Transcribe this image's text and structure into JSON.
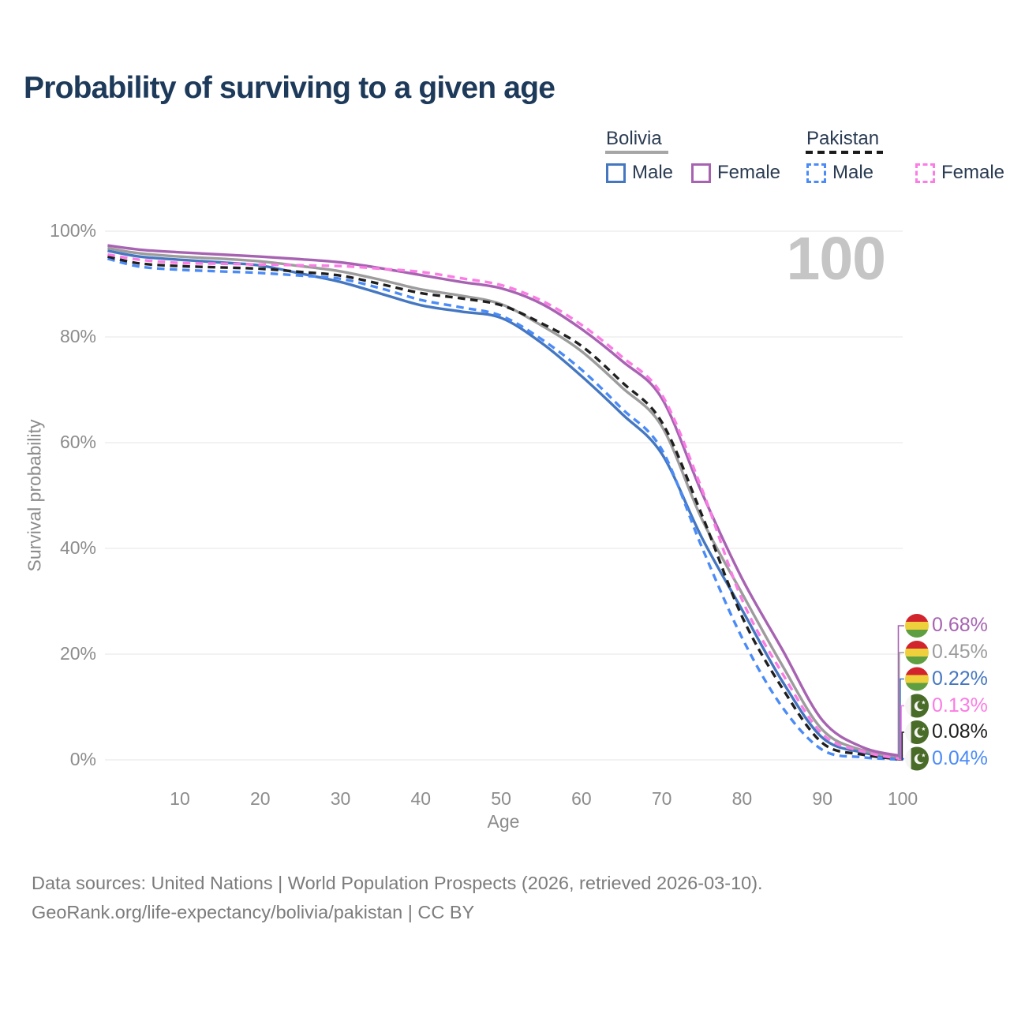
{
  "title": "Probability of surviving to a given age",
  "watermark_label": "100",
  "legend": {
    "groups": [
      {
        "country": "Bolivia",
        "line_style": "solid",
        "line_color": "#9c9c9c",
        "items": [
          {
            "label": "Male",
            "color": "#4577c1",
            "dashed": false
          },
          {
            "label": "Female",
            "color": "#a763b2",
            "dashed": false
          }
        ]
      },
      {
        "country": "Pakistan",
        "line_style": "dashed",
        "line_color": "#1f1f1f",
        "items": [
          {
            "label": "Male",
            "color": "#4b8bf7",
            "dashed": true
          },
          {
            "label": "Female",
            "color": "#fb7ce4",
            "dashed": true
          }
        ]
      }
    ]
  },
  "axes": {
    "y": {
      "title": "Survival probability",
      "tick_values": [
        0,
        20,
        40,
        60,
        80,
        100
      ],
      "tick_suffix": "%"
    },
    "x": {
      "title": "Age",
      "tick_values": [
        10,
        20,
        30,
        40,
        50,
        60,
        70,
        80,
        90,
        100
      ]
    }
  },
  "chart_data": {
    "type": "line",
    "title": "Probability of surviving to a given age",
    "xlabel": "Age",
    "ylabel": "Survival probability",
    "xlim": [
      0,
      100
    ],
    "ylim": [
      0,
      100
    ],
    "grid": true,
    "legend_position": "top-right",
    "ages": [
      1,
      5,
      10,
      15,
      20,
      25,
      30,
      35,
      40,
      45,
      50,
      55,
      60,
      65,
      70,
      75,
      80,
      85,
      90,
      95,
      100
    ],
    "series": [
      {
        "id": "bolivia-male",
        "name": "Bolivia — Male",
        "country": "Bolivia",
        "group": "Male",
        "color": "#4577c1",
        "dashed": false,
        "flag": "bolivia",
        "end_label": "0.22%",
        "label_row": 2,
        "values": [
          96.3,
          95.2,
          94.6,
          94.1,
          93.5,
          92.0,
          90.4,
          88.2,
          86.0,
          84.8,
          83.6,
          78.9,
          72.6,
          65.5,
          57.9,
          42.0,
          28.4,
          14.9,
          4.2,
          1.4,
          0.22
        ]
      },
      {
        "id": "bolivia-all",
        "name": "Bolivia — Both sexes",
        "country": "Bolivia",
        "group": "All",
        "color": "#9c9c9c",
        "dashed": false,
        "flag": "bolivia",
        "end_label": "0.45%",
        "label_row": 1,
        "values": [
          96.8,
          95.8,
          95.2,
          94.8,
          94.3,
          93.4,
          92.4,
          90.8,
          89.0,
          87.8,
          86.2,
          82.2,
          77.3,
          70.5,
          63.1,
          45.5,
          31.5,
          17.9,
          5.7,
          1.8,
          0.45
        ]
      },
      {
        "id": "bolivia-female",
        "name": "Bolivia — Female",
        "country": "Bolivia",
        "group": "Female",
        "color": "#a763b2",
        "dashed": false,
        "flag": "bolivia",
        "end_label": "0.68%",
        "label_row": 0,
        "values": [
          97.3,
          96.5,
          96.0,
          95.6,
          95.2,
          94.7,
          94.1,
          93.0,
          91.7,
          90.4,
          89.2,
          86.3,
          81.5,
          75.5,
          68.4,
          50.5,
          34.3,
          20.9,
          7.5,
          2.4,
          0.68
        ]
      },
      {
        "id": "pakistan-male",
        "name": "Pakistan — Male",
        "country": "Pakistan",
        "group": "Male",
        "color": "#4b8bf7",
        "dashed": true,
        "flag": "pakistan",
        "end_label": "0.04%",
        "label_row": 5,
        "values": [
          94.8,
          93.3,
          92.7,
          92.4,
          92.1,
          91.6,
          91.0,
          89.2,
          87.0,
          85.6,
          84.0,
          79.6,
          73.8,
          66.5,
          58.7,
          40.2,
          23.1,
          10.0,
          1.9,
          0.5,
          0.04
        ]
      },
      {
        "id": "pakistan-all",
        "name": "Pakistan — Both sexes",
        "country": "Pakistan",
        "group": "All",
        "color": "#1f1f1f",
        "dashed": true,
        "flag": "pakistan",
        "end_label": "0.08%",
        "label_row": 4,
        "values": [
          95.2,
          93.9,
          93.4,
          93.15,
          92.9,
          92.3,
          91.6,
          90.0,
          88.3,
          87.3,
          86.0,
          82.6,
          78.3,
          71.5,
          63.9,
          46.3,
          27.1,
          13.6,
          3.2,
          1.0,
          0.08
        ]
      },
      {
        "id": "pakistan-female",
        "name": "Pakistan — Female",
        "country": "Pakistan",
        "group": "Female",
        "color": "#fb7ce4",
        "dashed": true,
        "flag": "pakistan",
        "end_label": "0.13%",
        "label_row": 3,
        "values": [
          95.6,
          94.6,
          94.0,
          93.85,
          93.7,
          93.55,
          93.4,
          92.9,
          92.3,
          91.1,
          89.8,
          86.9,
          82.3,
          76.3,
          69.1,
          51.2,
          30.3,
          16.4,
          4.9,
          1.6,
          0.13
        ]
      }
    ],
    "flag_colors": {
      "bolivia": {
        "red": "#d2242d",
        "yellow": "#eed03c",
        "green": "#5f9e41"
      },
      "pakistan": {
        "green": "#4a6c29",
        "white": "#f5f5f3"
      }
    }
  },
  "footer": {
    "line1": "Data sources: United Nations | World Population Prospects (2026, retrieved 2026-03-10).",
    "line2": "GeoRank.org/life-expectancy/bolivia/pakistan | CC BY"
  }
}
